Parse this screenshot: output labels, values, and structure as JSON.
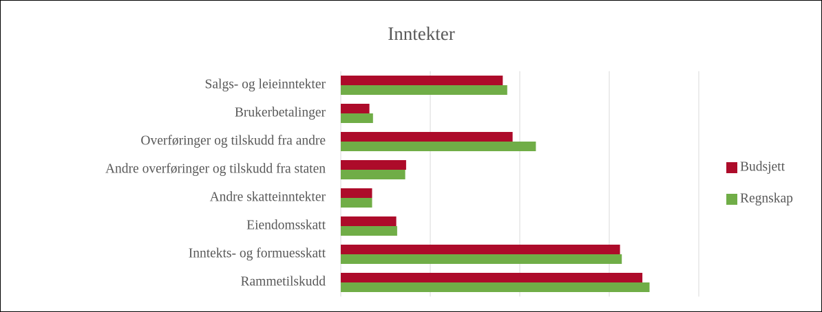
{
  "chart_data": {
    "type": "bar",
    "orientation": "horizontal",
    "title": "Inntekter",
    "categories": [
      "Salgs- og leieinntekter",
      "Brukerbetalinger",
      "Overføringer og tilskudd fra andre",
      "Andre overføringer og tilskudd fra staten",
      "Andre skatteinntekter",
      "Eiendomsskatt",
      "Inntekts- og formuesskatt",
      "Rammetilskudd"
    ],
    "series": [
      {
        "name": "Budsjett",
        "color": "#ad0b2a",
        "values": [
          1.81,
          0.32,
          1.92,
          0.73,
          0.35,
          0.62,
          3.12,
          3.37
        ]
      },
      {
        "name": "Regnskap",
        "color": "#70ad47",
        "values": [
          1.86,
          0.36,
          2.18,
          0.72,
          0.35,
          0.63,
          3.14,
          3.45
        ]
      }
    ],
    "xlim": [
      0,
      4
    ],
    "xticks": [
      0,
      1,
      2,
      3,
      4
    ],
    "grid": true,
    "legend": "right"
  }
}
